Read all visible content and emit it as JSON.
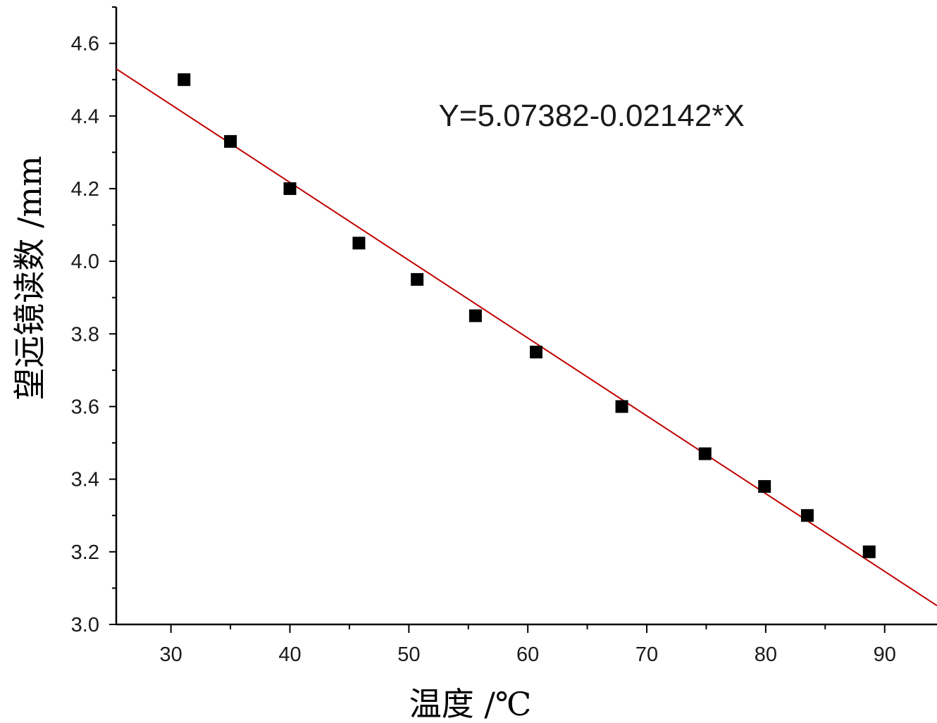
{
  "chart_data": {
    "type": "scatter",
    "title": "",
    "xlabel": "温度 /℃",
    "ylabel": "望远镜读数 /mm",
    "xlim": [
      25.4,
      94.4
    ],
    "ylim": [
      3.0,
      4.7
    ],
    "x_ticks": [
      30,
      40,
      50,
      60,
      70,
      80,
      90
    ],
    "y_ticks": [
      3.0,
      3.2,
      3.4,
      3.6,
      3.8,
      4.0,
      4.2,
      4.4,
      4.6
    ],
    "grid": false,
    "series": [
      {
        "marker": "square",
        "color": "#000000",
        "x": [
          31.1,
          35.0,
          40.0,
          45.8,
          50.7,
          55.6,
          60.7,
          67.9,
          74.9,
          79.9,
          83.5,
          88.7
        ],
        "y": [
          4.5,
          4.33,
          4.2,
          4.05,
          3.95,
          3.85,
          3.75,
          3.6,
          3.47,
          3.38,
          3.3,
          3.2
        ]
      }
    ],
    "fit_line": {
      "intercept": 5.07382,
      "slope": -0.02142,
      "color": "#c00000",
      "x_range": [
        25.4,
        94.4
      ]
    },
    "annotations": [
      {
        "text": "Y=5.07382-0.02142*X",
        "x": 52.5,
        "y": 4.4
      }
    ]
  }
}
